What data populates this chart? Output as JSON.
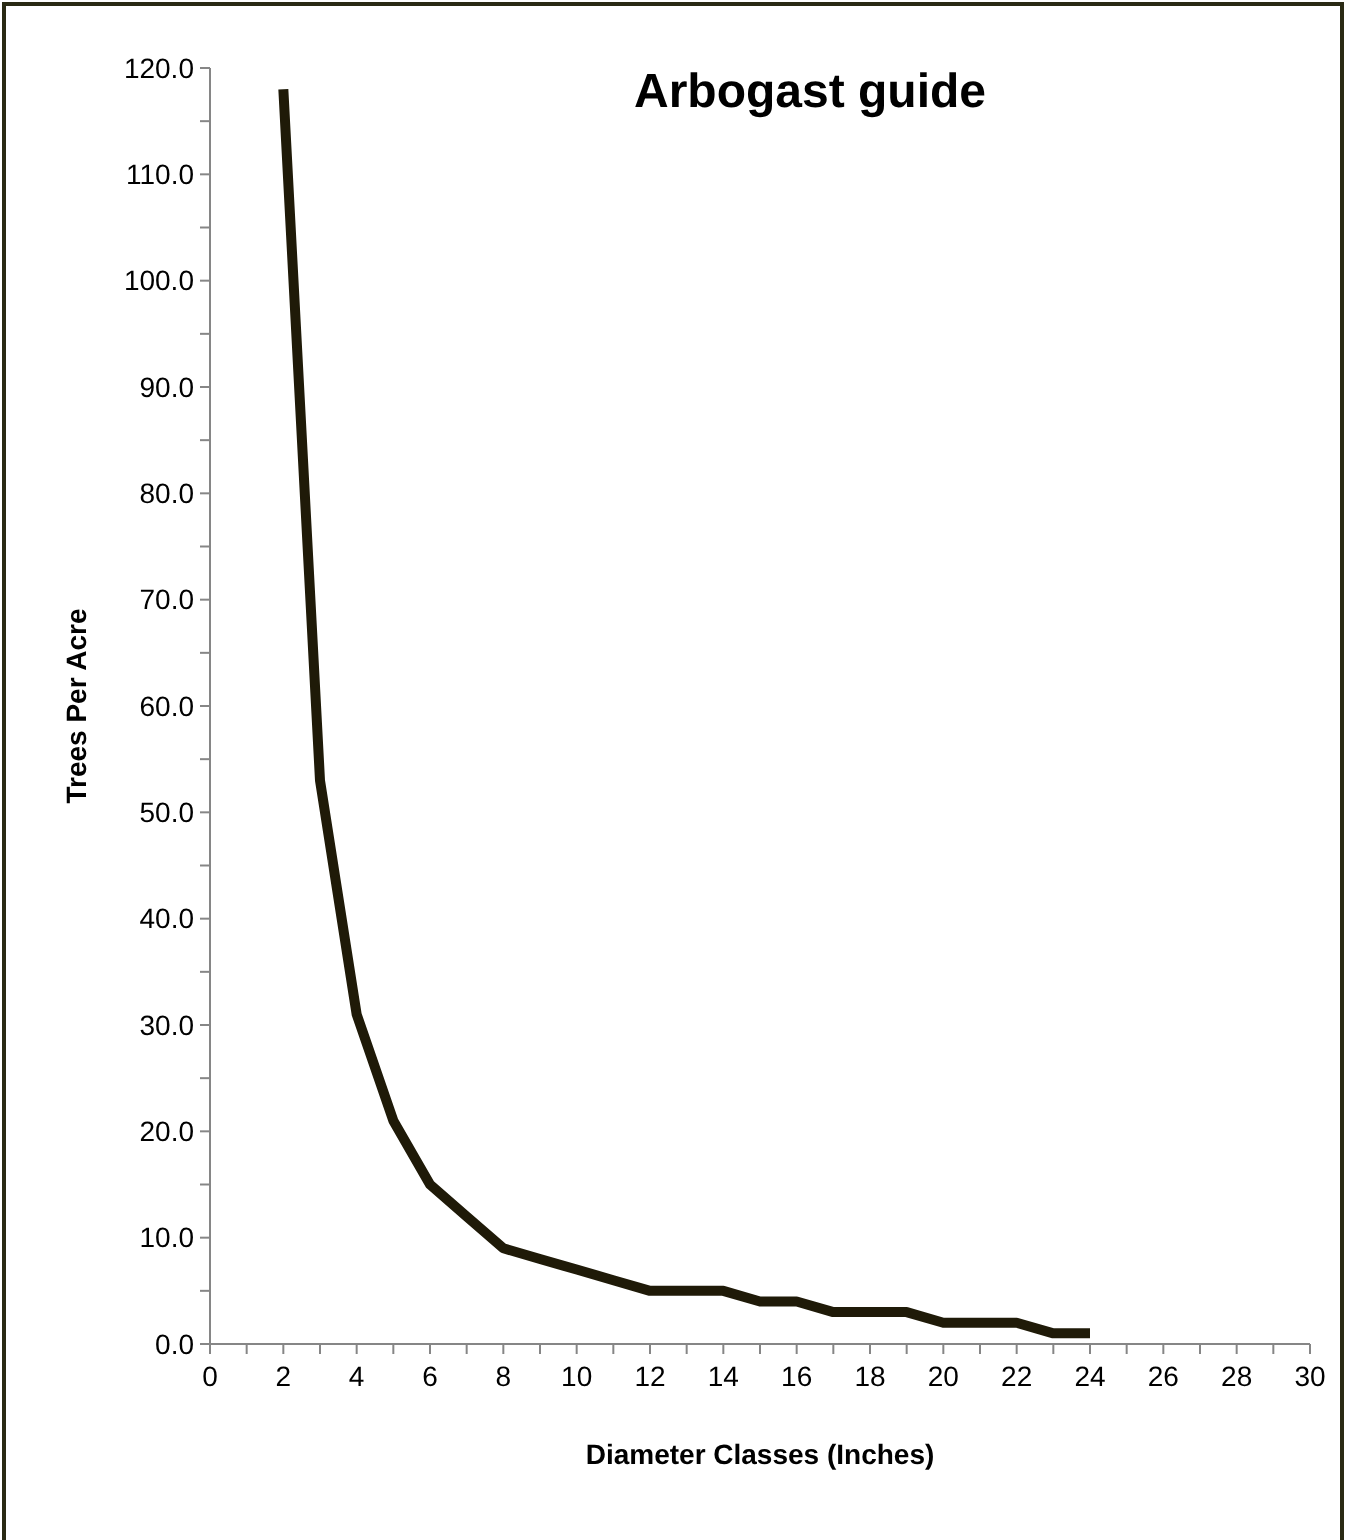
{
  "chart_data": {
    "type": "line",
    "title": "Arbogast guide",
    "xlabel": "Diameter Classes (Inches)",
    "ylabel": "Trees Per Acre",
    "x": [
      2,
      3,
      4,
      5,
      6,
      7,
      8,
      9,
      10,
      11,
      12,
      13,
      14,
      15,
      16,
      17,
      18,
      19,
      20,
      21,
      22,
      23,
      24
    ],
    "series": [
      {
        "color": "#1f1a08",
        "values": [
          118,
          53,
          31,
          21,
          15,
          12,
          9,
          8,
          7,
          6,
          5,
          5,
          5,
          4,
          4,
          3,
          3,
          3,
          2,
          2,
          2,
          1,
          1
        ]
      }
    ],
    "xlim": [
      0,
      30
    ],
    "xticks": [
      0,
      {
        "value": 1,
        "label": null
      },
      2,
      {
        "value": 3,
        "label": null
      },
      4,
      {
        "value": 5,
        "label": null
      },
      6,
      {
        "value": 7,
        "label": null
      },
      8,
      {
        "value": 9,
        "label": null
      },
      10,
      {
        "value": 11,
        "label": null
      },
      12,
      {
        "value": 13,
        "label": null
      },
      14,
      {
        "value": 15,
        "label": null
      },
      16,
      {
        "value": 17,
        "label": null
      },
      18,
      {
        "value": 19,
        "label": null
      },
      20,
      {
        "value": 21,
        "label": null
      },
      22,
      {
        "value": 23,
        "label": null
      },
      24,
      {
        "value": 25,
        "label": null
      },
      26,
      {
        "value": 27,
        "label": null
      },
      28,
      {
        "value": 29,
        "label": null
      },
      30
    ],
    "ylim": [
      0,
      120
    ],
    "yticks": [
      {
        "value": 0,
        "label": "0.0"
      },
      {
        "value": 5,
        "label": null
      },
      {
        "value": 10,
        "label": "10.0"
      },
      {
        "value": 15,
        "label": null
      },
      {
        "value": 20,
        "label": "20.0"
      },
      {
        "value": 25,
        "label": null
      },
      {
        "value": 30,
        "label": "30.0"
      },
      {
        "value": 35,
        "label": null
      },
      {
        "value": 40,
        "label": "40.0"
      },
      {
        "value": 45,
        "label": null
      },
      {
        "value": 50,
        "label": "50.0"
      },
      {
        "value": 55,
        "label": null
      },
      {
        "value": 60,
        "label": "60.0"
      },
      {
        "value": 65,
        "label": null
      },
      {
        "value": 70,
        "label": "70.0"
      },
      {
        "value": 75,
        "label": null
      },
      {
        "value": 80,
        "label": "80.0"
      },
      {
        "value": 85,
        "label": null
      },
      {
        "value": 90,
        "label": "90.0"
      },
      {
        "value": 95,
        "label": null
      },
      {
        "value": 100,
        "label": "100.0"
      },
      {
        "value": 105,
        "label": null
      },
      {
        "value": 110,
        "label": "110.0"
      },
      {
        "value": 115,
        "label": null
      },
      {
        "value": 120,
        "label": "120.0"
      }
    ],
    "grid": false,
    "marker": "none",
    "line_style": "solid"
  }
}
